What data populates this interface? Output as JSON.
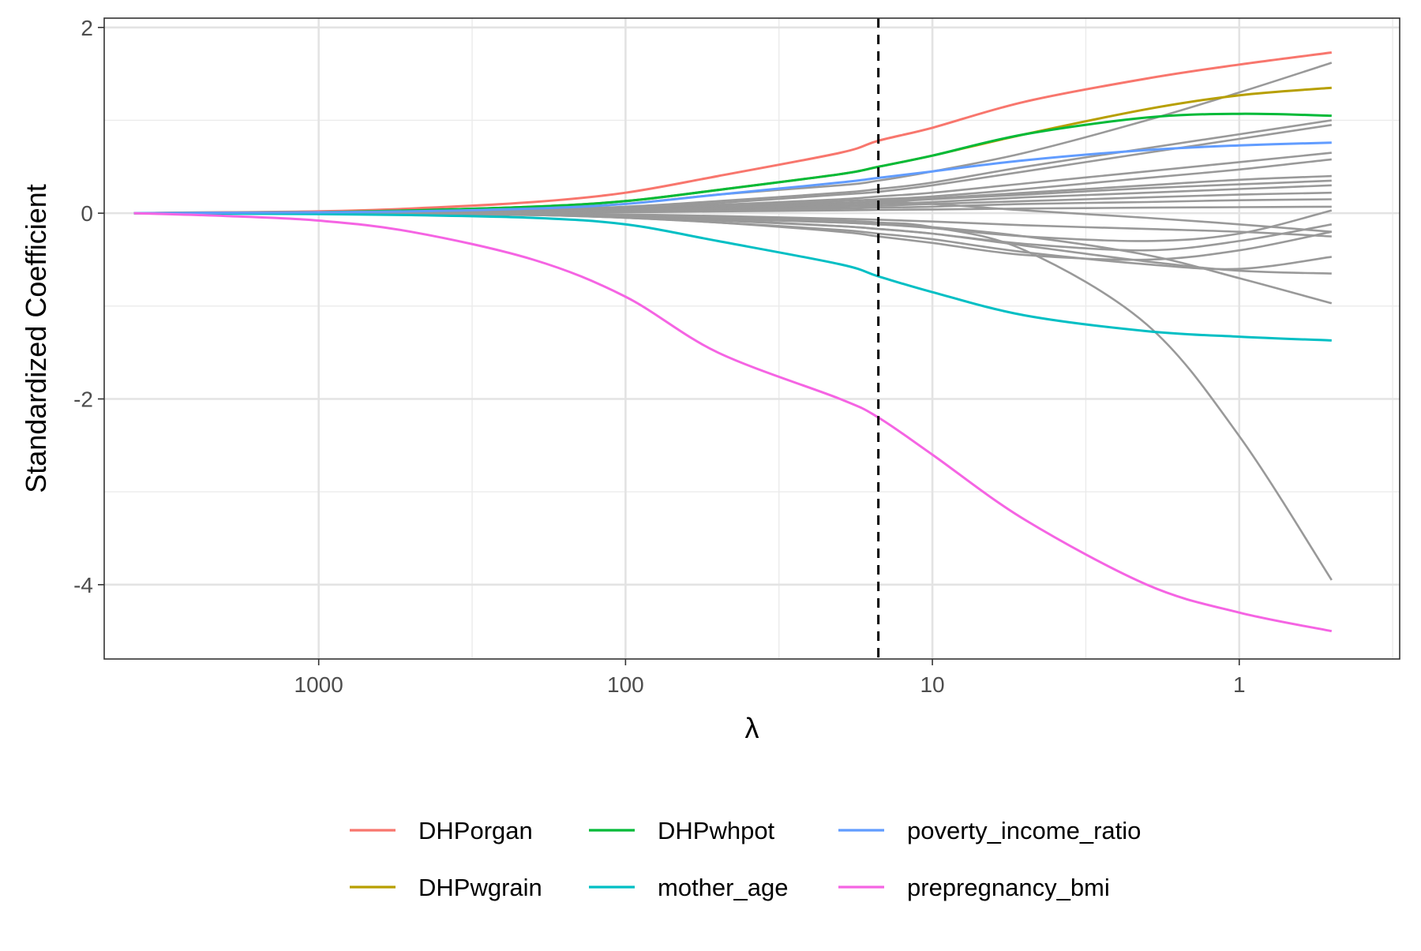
{
  "chart_data": {
    "type": "line",
    "title": "",
    "xlabel": "λ",
    "ylabel": "Standardized Coefficient",
    "x_scale": "log10-reversed",
    "xlim": [
      5000,
      0.3
    ],
    "ylim": [
      -4.8,
      2.1
    ],
    "x_ticks": [
      {
        "value": 1000,
        "label": "1000"
      },
      {
        "value": 100,
        "label": "100"
      },
      {
        "value": 10,
        "label": "10"
      },
      {
        "value": 1,
        "label": "1"
      }
    ],
    "y_ticks": [
      {
        "value": 2,
        "label": "2"
      },
      {
        "value": 0,
        "label": "0"
      },
      {
        "value": -2,
        "label": "-2"
      },
      {
        "value": -4,
        "label": "-4"
      }
    ],
    "grid": true,
    "legend_position": "bottom",
    "reference_line": {
      "x": 15,
      "style": "dashed",
      "color": "#000000"
    },
    "x": [
      4000,
      2000,
      1000,
      500,
      200,
      100,
      50,
      20,
      15,
      10,
      5,
      2,
      1,
      0.5
    ],
    "series": [
      {
        "name": "DHPorgan",
        "color": "#F8766D",
        "values": [
          0,
          0.01,
          0.02,
          0.05,
          0.12,
          0.22,
          0.4,
          0.65,
          0.78,
          0.92,
          1.2,
          1.45,
          1.6,
          1.73
        ]
      },
      {
        "name": "DHPwgrain",
        "color": "#B79F00",
        "values": [
          0,
          0.005,
          0.01,
          0.03,
          0.07,
          0.13,
          0.25,
          0.42,
          0.5,
          0.62,
          0.85,
          1.12,
          1.27,
          1.35
        ]
      },
      {
        "name": "DHPwhpot",
        "color": "#00BA38",
        "values": [
          0,
          0.005,
          0.01,
          0.03,
          0.07,
          0.13,
          0.25,
          0.42,
          0.5,
          0.62,
          0.85,
          1.03,
          1.07,
          1.05
        ]
      },
      {
        "name": "mother_age",
        "color": "#00BFC4",
        "values": [
          0,
          -0.005,
          -0.01,
          -0.02,
          -0.05,
          -0.12,
          -0.3,
          -0.55,
          -0.68,
          -0.85,
          -1.1,
          -1.27,
          -1.33,
          -1.37
        ]
      },
      {
        "name": "poverty_income_ratio",
        "color": "#619CFF",
        "values": [
          0,
          0.005,
          0.01,
          0.02,
          0.05,
          0.1,
          0.2,
          0.33,
          0.38,
          0.45,
          0.57,
          0.68,
          0.73,
          0.76
        ]
      },
      {
        "name": "prepregnancy_bmi",
        "color": "#F564E3",
        "values": [
          0,
          -0.03,
          -0.08,
          -0.2,
          -0.5,
          -0.9,
          -1.5,
          -2.0,
          -2.2,
          -2.6,
          -3.3,
          -4.0,
          -4.3,
          -4.5
        ]
      }
    ],
    "background_series": {
      "color": "#999999",
      "values": [
        [
          0,
          0.005,
          0.01,
          0.02,
          0.05,
          0.1,
          0.2,
          0.3,
          0.35,
          0.45,
          0.65,
          1.0,
          1.3,
          1.62
        ],
        [
          0,
          0.005,
          0.01,
          0.02,
          0.04,
          0.07,
          0.13,
          0.22,
          0.26,
          0.33,
          0.5,
          0.7,
          0.85,
          1.0
        ],
        [
          0,
          0.004,
          0.008,
          0.015,
          0.035,
          0.06,
          0.11,
          0.2,
          0.23,
          0.3,
          0.45,
          0.65,
          0.8,
          0.95
        ],
        [
          0,
          0.003,
          0.006,
          0.012,
          0.03,
          0.05,
          0.09,
          0.15,
          0.18,
          0.22,
          0.32,
          0.45,
          0.55,
          0.65
        ],
        [
          0,
          0.003,
          0.005,
          0.01,
          0.025,
          0.045,
          0.08,
          0.13,
          0.15,
          0.18,
          0.26,
          0.38,
          0.47,
          0.58
        ],
        [
          0,
          0.002,
          0.004,
          0.008,
          0.02,
          0.04,
          0.07,
          0.11,
          0.13,
          0.16,
          0.22,
          0.3,
          0.36,
          0.4
        ],
        [
          0,
          0.002,
          0.004,
          0.008,
          0.02,
          0.035,
          0.06,
          0.1,
          0.12,
          0.15,
          0.2,
          0.27,
          0.31,
          0.35
        ],
        [
          0,
          0.002,
          0.003,
          0.006,
          0.015,
          0.03,
          0.05,
          0.08,
          0.1,
          0.12,
          0.17,
          0.22,
          0.26,
          0.3
        ],
        [
          0,
          0.001,
          0.002,
          0.005,
          0.012,
          0.02,
          0.04,
          0.07,
          0.08,
          0.1,
          0.13,
          0.17,
          0.2,
          0.22
        ],
        [
          0,
          0.001,
          0.002,
          0.004,
          0.01,
          0.015,
          0.03,
          0.05,
          0.06,
          0.07,
          0.1,
          0.12,
          0.14,
          0.15
        ],
        [
          0,
          0.001,
          0.001,
          0.002,
          0.005,
          0.01,
          0.02,
          0.03,
          0.035,
          0.04,
          0.05,
          0.06,
          0.065,
          0.07
        ],
        [
          0,
          0.001,
          0.002,
          0.005,
          0.01,
          0.02,
          0.05,
          0.1,
          0.12,
          0.1,
          0.03,
          -0.05,
          -0.12,
          -0.2
        ],
        [
          0,
          -0.001,
          -0.002,
          -0.005,
          -0.01,
          -0.03,
          -0.06,
          -0.1,
          -0.12,
          -0.15,
          -0.25,
          -0.45,
          -0.7,
          -0.97
        ],
        [
          0,
          -0.001,
          -0.003,
          -0.007,
          -0.02,
          -0.04,
          -0.08,
          -0.14,
          -0.17,
          -0.22,
          -0.35,
          -0.52,
          -0.62,
          -0.65
        ],
        [
          0,
          -0.002,
          -0.004,
          -0.008,
          -0.02,
          -0.05,
          -0.1,
          -0.18,
          -0.22,
          -0.28,
          -0.42,
          -0.55,
          -0.6,
          -0.47
        ],
        [
          0,
          -0.002,
          -0.004,
          -0.01,
          -0.02,
          -0.05,
          -0.1,
          -0.2,
          -0.25,
          -0.32,
          -0.45,
          -0.5,
          -0.4,
          -0.2
        ],
        [
          0,
          -0.001,
          -0.003,
          -0.006,
          -0.015,
          -0.03,
          -0.07,
          -0.14,
          -0.17,
          -0.22,
          -0.33,
          -0.4,
          -0.3,
          -0.12
        ],
        [
          0,
          -0.001,
          -0.002,
          -0.004,
          -0.01,
          -0.02,
          -0.05,
          -0.1,
          -0.12,
          -0.16,
          -0.25,
          -0.3,
          -0.22,
          0.03
        ],
        [
          0,
          -0.001,
          -0.002,
          -0.003,
          -0.008,
          -0.015,
          -0.03,
          -0.06,
          -0.07,
          -0.09,
          -0.13,
          -0.17,
          -0.2,
          -0.25
        ],
        [
          0,
          -0.001,
          -0.002,
          -0.004,
          -0.01,
          -0.02,
          -0.04,
          -0.08,
          -0.1,
          -0.15,
          -0.4,
          -1.2,
          -2.4,
          -3.95
        ]
      ]
    }
  }
}
